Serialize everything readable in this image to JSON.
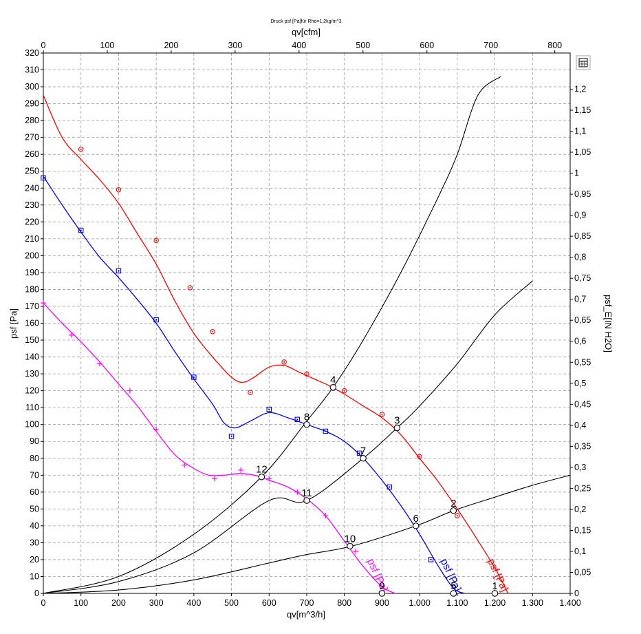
{
  "chart_data": {
    "type": "line",
    "title": "Druck psf  [Pa]für Rho=1,2kg/m^3",
    "xlabel": "qv[m^3/h]",
    "x2label": "qv[cfm]",
    "ylabel": "psf  [Pa]",
    "y2label": "psf_E[IN H2O]",
    "xlim": [
      0,
      1400
    ],
    "x2lim": [
      0,
      824
    ],
    "ylim": [
      0,
      320
    ],
    "y2lim": [
      0,
      1.286
    ],
    "grid": true,
    "x_ticks": [
      0,
      100,
      200,
      300,
      400,
      500,
      600,
      700,
      800,
      900,
      1000,
      1100,
      1200,
      1300,
      1400
    ],
    "x_tick_labels": [
      "0",
      "100",
      "200",
      "300",
      "400",
      "500",
      "600",
      "700",
      "800",
      "900",
      "1.000",
      "1.100",
      "1.200",
      "1.300",
      "1.400"
    ],
    "x2_ticks": [
      0,
      100,
      200,
      300,
      400,
      500,
      600,
      700,
      800
    ],
    "x2_tick_labels": [
      "0",
      "100",
      "200",
      "300",
      "400",
      "500",
      "600",
      "700",
      "800"
    ],
    "y_ticks": [
      0,
      10,
      20,
      30,
      40,
      50,
      60,
      70,
      80,
      90,
      100,
      110,
      120,
      130,
      140,
      150,
      160,
      170,
      180,
      190,
      200,
      210,
      220,
      230,
      240,
      250,
      260,
      270,
      280,
      290,
      300,
      310,
      320
    ],
    "y2_ticks": [
      0,
      0.05,
      0.1,
      0.15,
      0.2,
      0.25,
      0.3,
      0.35,
      0.4,
      0.45,
      0.5,
      0.55,
      0.6,
      0.65,
      0.7,
      0.75,
      0.8,
      0.85,
      0.9,
      0.95,
      1,
      1.05,
      1.1,
      1.15,
      1.2
    ],
    "y2_tick_labels": [
      "0",
      "0,05",
      "0,1",
      "0,15",
      "0,2",
      "0,25",
      "0,3",
      "0,35",
      "0,4",
      "0,45",
      "0,5",
      "0,55",
      "0,6",
      "0,65",
      "0,7",
      "0,75",
      "0,8",
      "0,85",
      "0,9",
      "0,95",
      "1",
      "1,05",
      "1,1",
      "1,15",
      "1,2"
    ],
    "series": [
      {
        "name": "psf [Pa]",
        "color": "#ff0000",
        "marker": "circle",
        "x": [
          0,
          50,
          100,
          150,
          200,
          250,
          300,
          350,
          400,
          450,
          500,
          530,
          560,
          600,
          640,
          680,
          720,
          760,
          800,
          850,
          900,
          950,
          1000,
          1050,
          1100,
          1150,
          1200,
          1235
        ],
        "y": [
          295,
          270,
          257,
          245,
          231,
          213,
          195,
          173,
          154,
          140,
          128,
          125,
          128,
          134,
          135,
          131,
          127,
          123,
          118,
          111,
          104,
          94,
          80,
          66,
          50,
          33,
          15,
          0
        ],
        "markers_x": [
          100,
          200,
          300,
          390,
          450,
          550,
          640,
          700,
          800,
          900,
          1000,
          1100
        ],
        "markers_y": [
          263,
          239,
          209,
          181,
          155,
          119,
          137,
          130,
          120,
          106,
          81,
          46
        ],
        "label": "psf [Pa]"
      },
      {
        "name": "psf [Pa]",
        "color": "#0000ff",
        "marker": "square",
        "x": [
          0,
          50,
          100,
          150,
          200,
          250,
          300,
          350,
          400,
          450,
          480,
          510,
          550,
          600,
          650,
          700,
          750,
          800,
          850,
          900,
          950,
          1000,
          1050,
          1090,
          1120
        ],
        "y": [
          247,
          230,
          214,
          199,
          187,
          174,
          160,
          143,
          127,
          112,
          101,
          98,
          102,
          107,
          104,
          100,
          96,
          90,
          80,
          67,
          52,
          35,
          16,
          3,
          0
        ],
        "markers_x": [
          0,
          100,
          200,
          300,
          400,
          500,
          600,
          675,
          750,
          840,
          920,
          1030
        ],
        "markers_y": [
          246,
          215,
          191,
          162,
          128,
          93,
          109,
          103,
          96,
          83,
          63,
          20
        ],
        "label": "psf [Pa]"
      },
      {
        "name": "psf [Pa]",
        "color": "#ff00ff",
        "marker": "cross",
        "x": [
          0,
          50,
          100,
          150,
          200,
          250,
          300,
          350,
          400,
          440,
          480,
          520,
          560,
          600,
          650,
          700,
          750,
          800,
          850,
          900,
          935
        ],
        "y": [
          172,
          160,
          149,
          137,
          124,
          111,
          96,
          82,
          74,
          70,
          70,
          71,
          70,
          67,
          63,
          56,
          46,
          31,
          16,
          4,
          0
        ],
        "markers_x": [
          0,
          75,
          150,
          230,
          300,
          375,
          455,
          525,
          600,
          675,
          750,
          830
        ],
        "markers_y": [
          172,
          153,
          136,
          120,
          97,
          76,
          68,
          73,
          68,
          60,
          46,
          25
        ],
        "label": "psf [Pa]"
      }
    ],
    "system_curves": [
      {
        "color": "#000000",
        "x": [
          0,
          200,
          400,
          580,
          700,
          770,
          850,
          950,
          1050,
          1100,
          1155,
          1215
        ],
        "y": [
          0,
          10,
          35,
          69,
          102,
          122,
          150,
          190,
          235,
          260,
          295,
          306
        ]
      },
      {
        "color": "#000000",
        "x": [
          0,
          200,
          400,
          600,
          700,
          850,
          940,
          1000,
          1100,
          1200,
          1300
        ],
        "y": [
          0,
          7,
          24,
          55,
          55,
          80,
          98,
          111,
          136,
          165,
          185
        ]
      },
      {
        "color": "#000000",
        "x": [
          0,
          200,
          400,
          600,
          700,
          820,
          990,
          1090,
          1200,
          1300,
          1400
        ],
        "y": [
          0,
          2,
          8,
          18,
          23,
          28,
          40,
          49,
          57,
          64,
          70
        ]
      }
    ],
    "operating_points": [
      {
        "label": "1",
        "x": 1200,
        "y": 0
      },
      {
        "label": "2",
        "x": 1090,
        "y": 49
      },
      {
        "label": "3",
        "x": 940,
        "y": 98
      },
      {
        "label": "4",
        "x": 770,
        "y": 122
      },
      {
        "label": "5",
        "x": 1090,
        "y": 0
      },
      {
        "label": "6",
        "x": 990,
        "y": 40
      },
      {
        "label": "7",
        "x": 850,
        "y": 80
      },
      {
        "label": "8",
        "x": 700,
        "y": 100
      },
      {
        "label": "9",
        "x": 900,
        "y": 0
      },
      {
        "label": "10",
        "x": 815,
        "y": 28
      },
      {
        "label": "11",
        "x": 700,
        "y": 55
      },
      {
        "label": "12",
        "x": 580,
        "y": 69
      }
    ]
  },
  "toolbar": {
    "icon": "calculator-icon"
  }
}
